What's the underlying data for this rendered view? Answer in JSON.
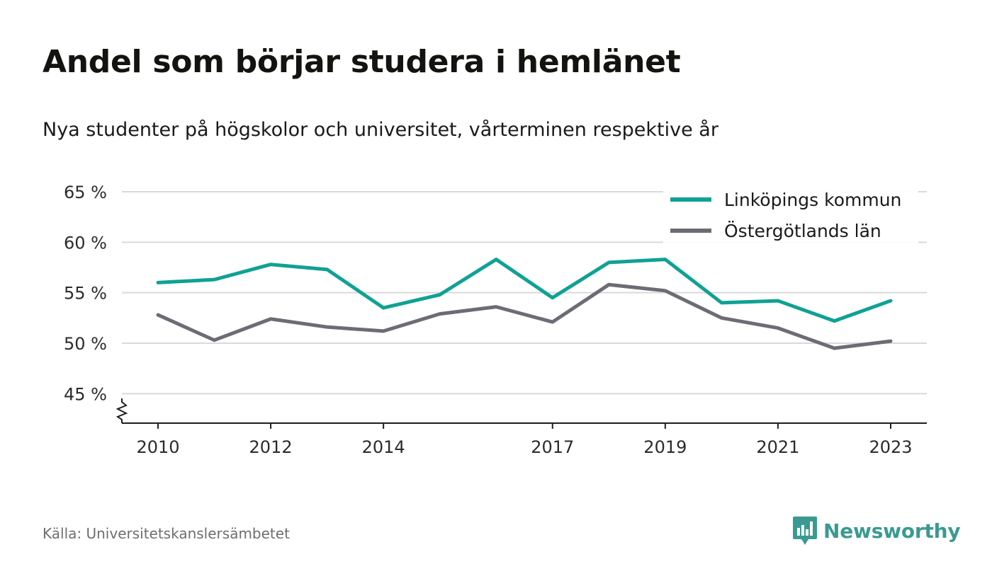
{
  "title": "Andel som börjar studera i hemlänet",
  "subtitle": "Nya studenter på högskolor och universitet, vårterminen respektive år",
  "source": "Källa: Universitetskanslersämbetet",
  "brand": {
    "name": "Newsworthy",
    "icon": "newsworthy-logo-icon",
    "color": "#3a9a92"
  },
  "chart_data": {
    "type": "line",
    "x": [
      2010,
      2011,
      2012,
      2013,
      2014,
      2015,
      2016,
      2017,
      2018,
      2019,
      2020,
      2021,
      2022,
      2023
    ],
    "x_tick_labels": [
      "2010",
      "2012",
      "2014",
      "2017",
      "2019",
      "2021",
      "2023"
    ],
    "y_tick_labels": [
      "45 %",
      "50 %",
      "55 %",
      "60 %",
      "65 %"
    ],
    "ylim": [
      42,
      65
    ],
    "y_ticks": [
      45,
      50,
      55,
      60,
      65
    ],
    "y_axis_break": true,
    "grid": true,
    "legend_position": "top-right",
    "series": [
      {
        "name": "Linköpings kommun",
        "color": "#0fa195",
        "values": [
          56.0,
          56.3,
          57.8,
          57.3,
          53.5,
          54.8,
          58.3,
          54.5,
          58.0,
          58.3,
          54.0,
          54.2,
          52.2,
          54.2
        ]
      },
      {
        "name": "Östergötlands län",
        "color": "#6c6c75",
        "values": [
          52.8,
          50.3,
          52.4,
          51.6,
          51.2,
          52.9,
          53.6,
          52.1,
          55.8,
          55.2,
          52.5,
          51.5,
          49.5,
          50.2
        ]
      }
    ]
  }
}
